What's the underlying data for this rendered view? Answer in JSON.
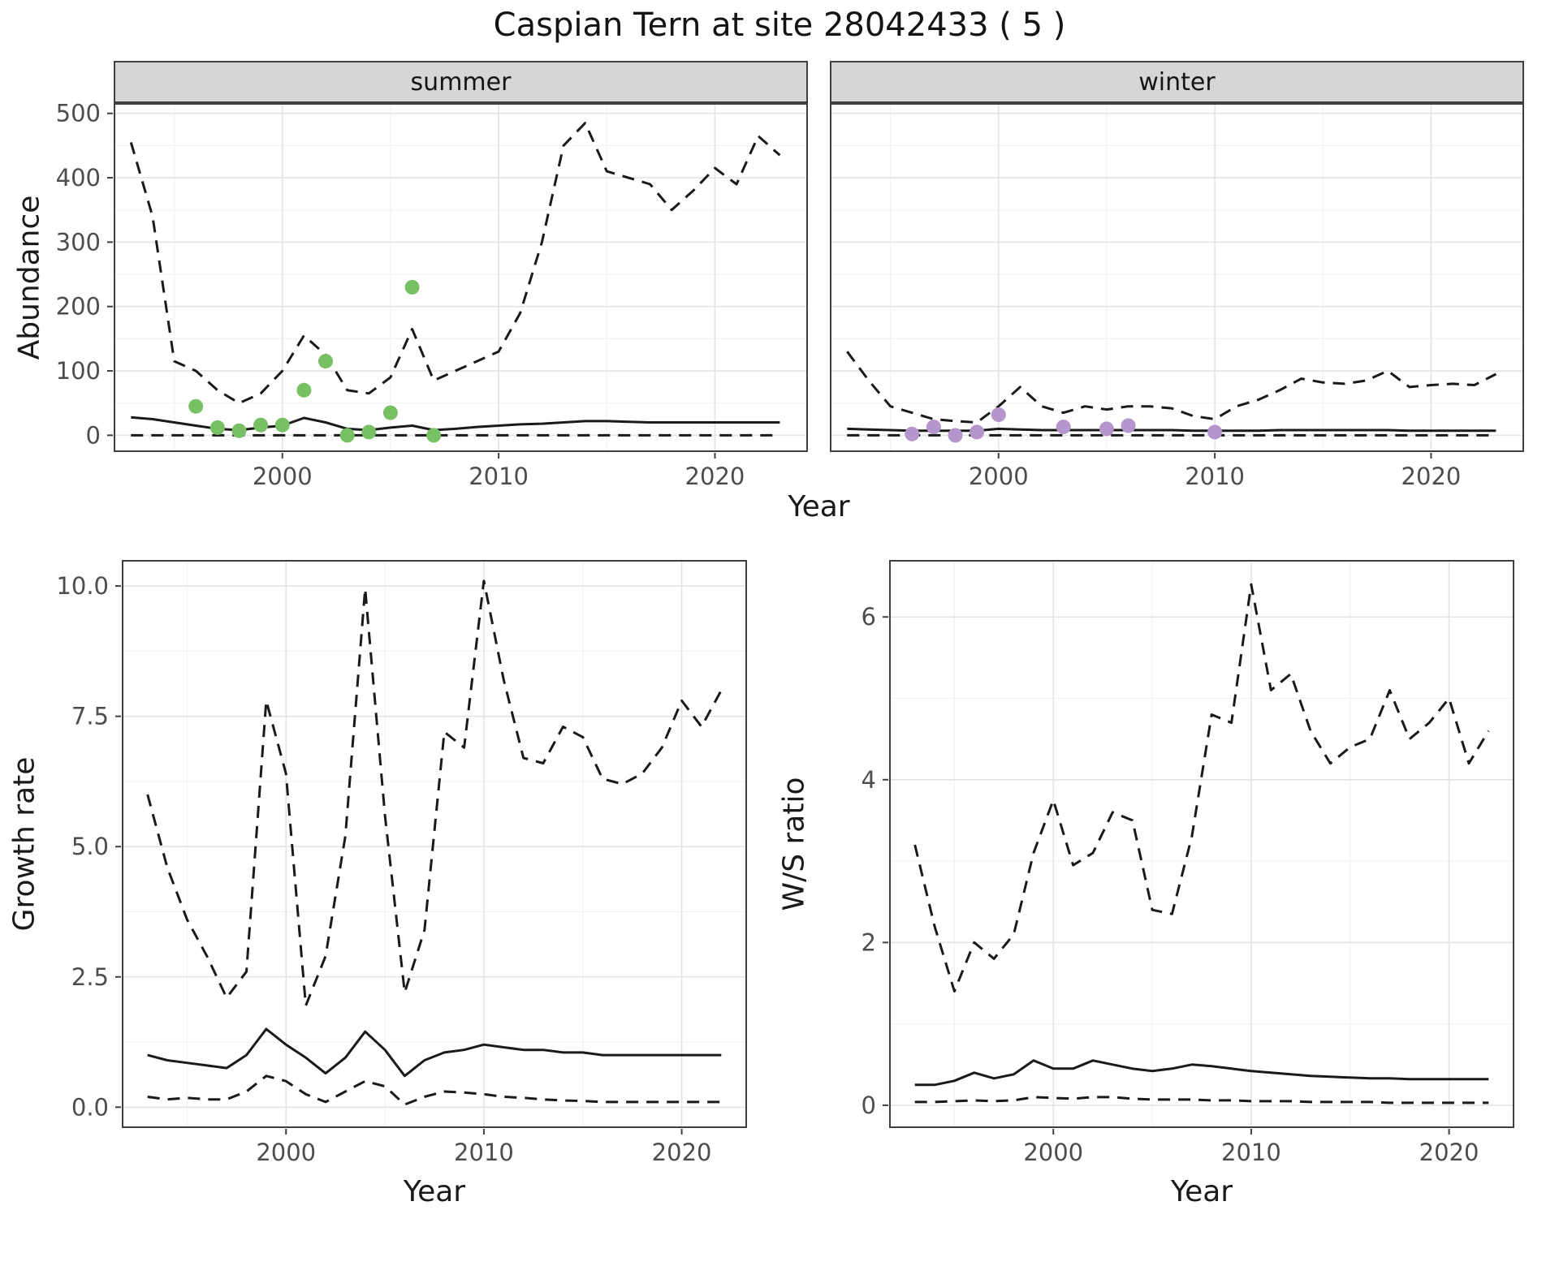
{
  "title": "Caspian Tern at site 28042433 ( 5 )",
  "top_xlabel": "Year",
  "colors": {
    "line": "#1a1a1a",
    "grid_major": "#e4e4e4",
    "grid_minor": "#f2f2f2",
    "border": "#3f3f3f",
    "strip_bg": "#d6d6d6",
    "tick_text": "#4d4d4d",
    "summer_points": "#77c063",
    "winter_points": "#b596cc"
  },
  "chart_data": [
    {
      "id": "summer-abundance",
      "type": "line",
      "facet_label": "summer",
      "ylabel": "Abundance",
      "xlabel": "Year",
      "xlim": [
        1992.2,
        2024.3
      ],
      "ylim": [
        -26,
        516
      ],
      "xticks": [
        2000,
        2010,
        2020
      ],
      "xtick_labels": [
        "2000",
        "2010",
        "2020"
      ],
      "yticks": [
        0,
        100,
        200,
        300,
        400,
        500
      ],
      "ytick_labels": [
        "0",
        "100",
        "200",
        "300",
        "400",
        "500"
      ],
      "x_minor": [
        1995,
        2005,
        2015
      ],
      "y_minor": [
        50,
        150,
        250,
        350,
        450
      ],
      "show_y_labels": true,
      "grid": true,
      "legend": "none",
      "x": [
        1993,
        1994,
        1995,
        1996,
        1997,
        1998,
        1999,
        2000,
        2001,
        2002,
        2003,
        2004,
        2005,
        2006,
        2007,
        2008,
        2009,
        2010,
        2011,
        2012,
        2013,
        2014,
        2015,
        2016,
        2017,
        2018,
        2019,
        2020,
        2021,
        2022,
        2023
      ],
      "series": [
        {
          "name": "upper-ci",
          "style": "dashed",
          "values": [
            455,
            340,
            115,
            100,
            70,
            50,
            65,
            100,
            155,
            125,
            70,
            65,
            90,
            165,
            85,
            100,
            115,
            130,
            190,
            300,
            450,
            485,
            410,
            400,
            390,
            350,
            380,
            415,
            390,
            465,
            435
          ]
        },
        {
          "name": "median",
          "style": "solid",
          "values": [
            28,
            25,
            20,
            15,
            10,
            8,
            12,
            15,
            27,
            20,
            10,
            8,
            12,
            15,
            8,
            10,
            13,
            15,
            17,
            18,
            20,
            22,
            22,
            21,
            20,
            20,
            20,
            20,
            20,
            20,
            20
          ]
        },
        {
          "name": "lower-ci",
          "style": "dashed",
          "values": [
            0,
            0,
            0,
            0,
            0,
            0,
            0,
            0,
            0,
            0,
            0,
            0,
            0,
            0,
            0,
            0,
            0,
            0,
            0,
            0,
            0,
            0,
            0,
            0,
            0,
            0,
            0,
            0,
            0,
            0,
            0
          ]
        }
      ],
      "points": {
        "name": "summer-observations",
        "color_key": "summer_points",
        "x": [
          1996,
          1997,
          1998,
          1999,
          2000,
          2001,
          2002,
          2003,
          2004,
          2005,
          2006,
          2007
        ],
        "y": [
          45,
          12,
          7,
          16,
          16,
          70,
          115,
          0,
          5,
          35,
          230,
          0
        ]
      }
    },
    {
      "id": "winter-abundance",
      "type": "line",
      "facet_label": "winter",
      "ylabel": "Abundance",
      "xlabel": "Year",
      "xlim": [
        1992.2,
        2024.3
      ],
      "ylim": [
        -26,
        516
      ],
      "xticks": [
        2000,
        2010,
        2020
      ],
      "xtick_labels": [
        "2000",
        "2010",
        "2020"
      ],
      "yticks": [
        0,
        100,
        200,
        300,
        400,
        500
      ],
      "ytick_labels": [
        "0",
        "100",
        "200",
        "300",
        "400",
        "500"
      ],
      "x_minor": [
        1995,
        2005,
        2015
      ],
      "y_minor": [
        50,
        150,
        250,
        350,
        450
      ],
      "show_y_labels": false,
      "grid": true,
      "legend": "none",
      "x": [
        1993,
        1994,
        1995,
        1996,
        1997,
        1998,
        1999,
        2000,
        2001,
        2002,
        2003,
        2004,
        2005,
        2006,
        2007,
        2008,
        2009,
        2010,
        2011,
        2012,
        2013,
        2014,
        2015,
        2016,
        2017,
        2018,
        2019,
        2020,
        2021,
        2022,
        2023
      ],
      "series": [
        {
          "name": "upper-ci",
          "style": "dashed",
          "values": [
            130,
            85,
            45,
            35,
            25,
            22,
            20,
            45,
            75,
            45,
            35,
            45,
            40,
            45,
            45,
            42,
            30,
            25,
            45,
            55,
            70,
            88,
            82,
            80,
            85,
            100,
            75,
            78,
            80,
            78,
            95
          ]
        },
        {
          "name": "median",
          "style": "solid",
          "values": [
            10,
            9,
            8,
            7,
            7,
            7,
            7,
            10,
            9,
            8,
            8,
            8,
            8,
            8,
            8,
            8,
            7,
            7,
            7,
            7,
            8,
            8,
            8,
            8,
            8,
            8,
            7,
            7,
            7,
            7,
            7
          ]
        },
        {
          "name": "lower-ci",
          "style": "dashed",
          "values": [
            0,
            0,
            0,
            0,
            0,
            0,
            0,
            0,
            0,
            0,
            0,
            0,
            0,
            0,
            0,
            0,
            0,
            0,
            0,
            0,
            0,
            0,
            0,
            0,
            0,
            0,
            0,
            0,
            0,
            0,
            0
          ]
        }
      ],
      "points": {
        "name": "winter-observations",
        "color_key": "winter_points",
        "x": [
          1996,
          1997,
          1998,
          1999,
          2000,
          2003,
          2005,
          2006,
          2010
        ],
        "y": [
          2,
          13,
          0,
          5,
          32,
          13,
          10,
          15,
          5
        ]
      }
    },
    {
      "id": "growth-rate",
      "type": "line",
      "facet_label": "",
      "ylabel": "Growth rate",
      "xlabel": "Year",
      "xlim": [
        1991.7,
        2023.3
      ],
      "ylim": [
        -0.4,
        10.5
      ],
      "xticks": [
        2000,
        2010,
        2020
      ],
      "xtick_labels": [
        "2000",
        "2010",
        "2020"
      ],
      "yticks": [
        0,
        2.5,
        5,
        7.5,
        10
      ],
      "ytick_labels": [
        "0.0",
        "2.5",
        "5.0",
        "7.5",
        "10.0"
      ],
      "x_minor": [
        1995,
        2005,
        2015
      ],
      "y_minor": [
        1.25,
        3.75,
        6.25,
        8.75
      ],
      "show_y_labels": true,
      "grid": true,
      "legend": "none",
      "x": [
        1993,
        1994,
        1995,
        1996,
        1997,
        1998,
        1999,
        2000,
        2001,
        2002,
        2003,
        2004,
        2005,
        2006,
        2007,
        2008,
        2009,
        2010,
        2011,
        2012,
        2013,
        2014,
        2015,
        2016,
        2017,
        2018,
        2019,
        2020,
        2021,
        2022
      ],
      "series": [
        {
          "name": "upper-ci",
          "style": "dashed",
          "values": [
            6.0,
            4.6,
            3.6,
            2.9,
            2.1,
            2.6,
            7.8,
            6.4,
            1.95,
            2.9,
            5.2,
            9.95,
            5.6,
            2.2,
            3.4,
            7.2,
            6.9,
            10.1,
            8.2,
            6.7,
            6.6,
            7.3,
            7.1,
            6.3,
            6.2,
            6.4,
            6.9,
            7.8,
            7.3,
            8.0
          ]
        },
        {
          "name": "median",
          "style": "solid",
          "values": [
            1.0,
            0.9,
            0.85,
            0.8,
            0.75,
            1.0,
            1.5,
            1.2,
            0.95,
            0.65,
            0.95,
            1.45,
            1.1,
            0.6,
            0.9,
            1.05,
            1.1,
            1.2,
            1.15,
            1.1,
            1.1,
            1.05,
            1.05,
            1.0,
            1.0,
            1.0,
            1.0,
            1.0,
            1.0,
            1.0
          ]
        },
        {
          "name": "lower-ci",
          "style": "dashed",
          "values": [
            0.2,
            0.15,
            0.18,
            0.15,
            0.15,
            0.3,
            0.6,
            0.5,
            0.25,
            0.1,
            0.3,
            0.5,
            0.4,
            0.05,
            0.2,
            0.3,
            0.28,
            0.25,
            0.2,
            0.18,
            0.15,
            0.13,
            0.12,
            0.1,
            0.1,
            0.1,
            0.1,
            0.1,
            0.1,
            0.1
          ]
        }
      ]
    },
    {
      "id": "ws-ratio",
      "type": "line",
      "facet_label": "",
      "ylabel": "W/S ratio",
      "xlabel": "Year",
      "xlim": [
        1991.7,
        2023.3
      ],
      "ylim": [
        -0.28,
        6.7
      ],
      "xticks": [
        2000,
        2010,
        2020
      ],
      "xtick_labels": [
        "2000",
        "2010",
        "2020"
      ],
      "yticks": [
        0,
        2,
        4,
        6
      ],
      "ytick_labels": [
        "0",
        "2",
        "4",
        "6"
      ],
      "x_minor": [
        1995,
        2005,
        2015
      ],
      "y_minor": [
        1,
        3,
        5
      ],
      "show_y_labels": true,
      "grid": true,
      "legend": "none",
      "x": [
        1993,
        1994,
        1995,
        1996,
        1997,
        1998,
        1999,
        2000,
        2001,
        2002,
        2003,
        2004,
        2005,
        2006,
        2007,
        2008,
        2009,
        2010,
        2011,
        2012,
        2013,
        2014,
        2015,
        2016,
        2017,
        2018,
        2019,
        2020,
        2021,
        2022
      ],
      "series": [
        {
          "name": "upper-ci",
          "style": "dashed",
          "values": [
            3.2,
            2.2,
            1.4,
            2.0,
            1.8,
            2.1,
            3.1,
            3.75,
            2.95,
            3.1,
            3.6,
            3.5,
            2.4,
            2.35,
            3.3,
            4.8,
            4.7,
            6.4,
            5.1,
            5.3,
            4.6,
            4.2,
            4.4,
            4.5,
            5.1,
            4.5,
            4.7,
            5.0,
            4.2,
            4.6
          ]
        },
        {
          "name": "median",
          "style": "solid",
          "values": [
            0.25,
            0.25,
            0.3,
            0.4,
            0.33,
            0.38,
            0.55,
            0.45,
            0.45,
            0.55,
            0.5,
            0.45,
            0.42,
            0.45,
            0.5,
            0.48,
            0.45,
            0.42,
            0.4,
            0.38,
            0.36,
            0.35,
            0.34,
            0.33,
            0.33,
            0.32,
            0.32,
            0.32,
            0.32,
            0.32
          ]
        },
        {
          "name": "lower-ci",
          "style": "dashed",
          "values": [
            0.04,
            0.04,
            0.05,
            0.06,
            0.05,
            0.06,
            0.1,
            0.09,
            0.08,
            0.1,
            0.1,
            0.08,
            0.07,
            0.07,
            0.07,
            0.06,
            0.06,
            0.05,
            0.05,
            0.05,
            0.04,
            0.04,
            0.04,
            0.04,
            0.03,
            0.03,
            0.03,
            0.03,
            0.03,
            0.03
          ]
        }
      ]
    }
  ]
}
